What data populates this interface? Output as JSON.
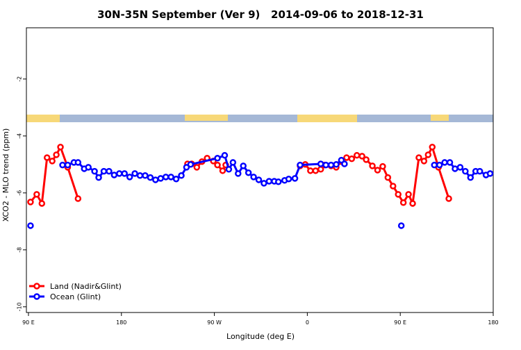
{
  "chart_data": {
    "type": "line",
    "title": "30N-35N September (Ver 9)   2014-09-06 to 2018-12-31",
    "x_label": "Longitude (deg E)",
    "y_label": "XCO2 - MLO trend (ppm)",
    "xlim": [
      88,
      540
    ],
    "ylim": [
      -10.2,
      -0.2
    ],
    "xticks": [
      {
        "value": 90,
        "label": "90 E"
      },
      {
        "value": 180,
        "label": "180"
      },
      {
        "value": 270,
        "label": "90 W"
      },
      {
        "value": 360,
        "label": "0"
      },
      {
        "value": 450,
        "label": "90 E"
      },
      {
        "value": 540,
        "label": "180"
      }
    ],
    "yticks": [
      -2,
      -4,
      -6,
      -8,
      -10
    ],
    "legend": "bottom-left",
    "series": [
      {
        "name": "Land (Nadir&Glint)",
        "color": "#ff0000",
        "x": [
          92,
          98,
          103,
          108,
          113,
          117,
          121,
          128,
          138,
          200,
          244,
          248,
          253,
          258,
          263,
          269,
          273,
          278,
          281,
          340,
          353,
          358,
          363,
          368,
          373,
          377,
          383,
          388,
          393,
          398,
          403,
          408,
          413,
          417,
          423,
          428,
          433,
          438,
          443,
          448,
          453,
          458,
          462,
          468,
          473,
          477,
          481,
          487,
          497
        ],
        "values": [
          -6.32,
          -6.05,
          -6.37,
          -4.76,
          -4.88,
          -4.66,
          -4.39,
          -5.1,
          -6.2,
          null,
          -4.98,
          -4.98,
          -5.1,
          -4.9,
          -4.78,
          -4.88,
          -5.02,
          -5.22,
          -5.02,
          null,
          -5.05,
          -5.0,
          -5.22,
          -5.22,
          -5.17,
          -5.02,
          -5.05,
          -5.1,
          -4.9,
          -4.76,
          -4.8,
          -4.68,
          -4.71,
          -4.83,
          -5.05,
          -5.2,
          -5.07,
          -5.46,
          -5.76,
          -6.05,
          -6.34,
          -6.05,
          -6.37,
          -4.76,
          -4.88,
          -4.66,
          -4.39,
          -5.1,
          -6.2
        ]
      },
      {
        "name": "Ocean (Glint)",
        "color": "#0000ff",
        "x": [
          92,
          110,
          123,
          128,
          134,
          138,
          144,
          148,
          154,
          158,
          163,
          168,
          173,
          178,
          183,
          188,
          193,
          198,
          203,
          208,
          213,
          218,
          223,
          228,
          233,
          238,
          243,
          247,
          273,
          280,
          284,
          288,
          293,
          298,
          303,
          308,
          313,
          318,
          323,
          328,
          332,
          338,
          342,
          348,
          353,
          373,
          378,
          383,
          388,
          393,
          396,
          430,
          451,
          460,
          483,
          488,
          493,
          498,
          503,
          508,
          513,
          518,
          523,
          527,
          533,
          537
        ],
        "values": [
          -7.15,
          null,
          -5.02,
          -5.02,
          -4.93,
          -4.93,
          -5.15,
          -5.1,
          -5.24,
          -5.46,
          -5.24,
          -5.24,
          -5.37,
          -5.32,
          -5.32,
          -5.44,
          -5.32,
          -5.39,
          -5.39,
          -5.46,
          -5.54,
          -5.49,
          -5.44,
          -5.44,
          -5.51,
          -5.39,
          -5.1,
          -5.0,
          -4.78,
          -4.68,
          -5.17,
          -4.93,
          -5.32,
          -5.05,
          -5.29,
          -5.44,
          -5.54,
          -5.66,
          -5.59,
          -5.59,
          -5.61,
          -5.56,
          -5.51,
          -5.49,
          -5.02,
          -4.98,
          -5.02,
          -5.02,
          -5.0,
          -4.85,
          -4.98,
          null,
          -7.15,
          null,
          -5.02,
          -5.02,
          -4.93,
          -4.93,
          -5.15,
          -5.1,
          -5.24,
          -5.46,
          -5.24,
          -5.24,
          -5.37,
          -5.32
        ]
      }
    ]
  }
}
